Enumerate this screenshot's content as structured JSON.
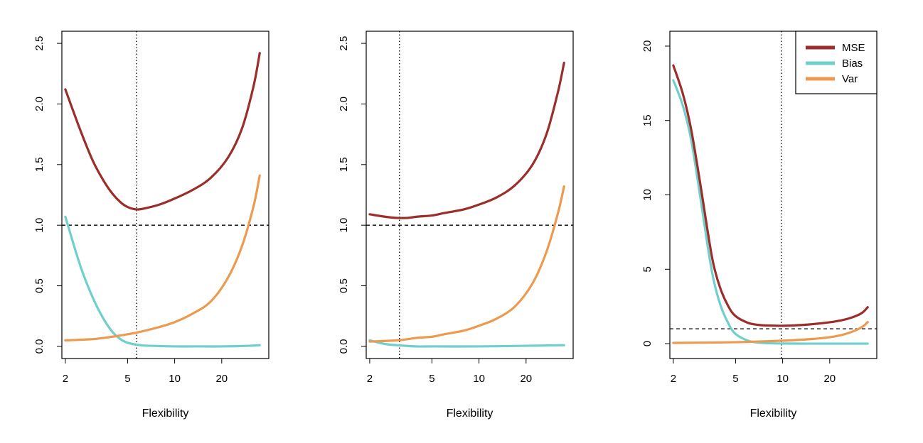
{
  "colors": {
    "MSE": "#9b2d2a",
    "Bias": "#6fcfcb",
    "Var": "#eb9a4f",
    "frame": "#000000",
    "background": "#ffffff"
  },
  "chart_data": [
    {
      "type": "line",
      "xlabel": "Flexibility",
      "ylabel": "",
      "x_scale": "log",
      "xlim": [
        1.9,
        40
      ],
      "ylim": [
        -0.1,
        2.6
      ],
      "xticks": [
        2,
        5,
        10,
        20
      ],
      "xtick_labels": [
        "2",
        "5",
        "10",
        "20"
      ],
      "yticks": [
        0.0,
        0.5,
        1.0,
        1.5,
        2.0,
        2.5
      ],
      "ytick_labels": [
        "0.0",
        "0.5",
        "1.0",
        "1.5",
        "2.0",
        "2.5"
      ],
      "hline": 1.0,
      "vline": 5.7,
      "legend": false,
      "series": [
        {
          "name": "MSE",
          "x": [
            2,
            2.5,
            3,
            3.5,
            4,
            4.5,
            5,
            5.7,
            6.5,
            8,
            10,
            13,
            17,
            22,
            27,
            32,
            35
          ],
          "y": [
            2.12,
            1.78,
            1.53,
            1.37,
            1.26,
            1.19,
            1.15,
            1.13,
            1.14,
            1.17,
            1.22,
            1.29,
            1.39,
            1.56,
            1.8,
            2.15,
            2.42
          ]
        },
        {
          "name": "Bias",
          "x": [
            2,
            2.5,
            3,
            3.5,
            4,
            4.5,
            5,
            6,
            7,
            10,
            15,
            20,
            30,
            35
          ],
          "y": [
            1.07,
            0.66,
            0.4,
            0.23,
            0.12,
            0.06,
            0.03,
            0.01,
            0.005,
            0.0,
            0.0,
            0.0,
            0.005,
            0.01
          ]
        },
        {
          "name": "Var",
          "x": [
            2,
            3,
            4,
            5,
            6,
            8,
            10,
            13,
            17,
            22,
            27,
            32,
            35
          ],
          "y": [
            0.05,
            0.06,
            0.08,
            0.1,
            0.12,
            0.16,
            0.2,
            0.27,
            0.37,
            0.57,
            0.83,
            1.16,
            1.41
          ]
        }
      ]
    },
    {
      "type": "line",
      "xlabel": "Flexibility",
      "ylabel": "",
      "x_scale": "log",
      "xlim": [
        1.9,
        40
      ],
      "ylim": [
        -0.1,
        2.6
      ],
      "xticks": [
        2,
        5,
        10,
        20
      ],
      "xtick_labels": [
        "2",
        "5",
        "10",
        "20"
      ],
      "yticks": [
        0.0,
        0.5,
        1.0,
        1.5,
        2.0,
        2.5
      ],
      "ytick_labels": [
        "0.0",
        "0.5",
        "1.0",
        "1.5",
        "2.0",
        "2.5"
      ],
      "hline": 1.0,
      "vline": 3.1,
      "legend": false,
      "series": [
        {
          "name": "MSE",
          "x": [
            2,
            2.5,
            3,
            3.5,
            4,
            5,
            6,
            8,
            10,
            13,
            17,
            22,
            27,
            32,
            35
          ],
          "y": [
            1.09,
            1.07,
            1.06,
            1.06,
            1.07,
            1.08,
            1.1,
            1.13,
            1.17,
            1.23,
            1.33,
            1.5,
            1.75,
            2.1,
            2.34
          ]
        },
        {
          "name": "Bias",
          "x": [
            2,
            2.5,
            3,
            4,
            5,
            10,
            20,
            35
          ],
          "y": [
            0.05,
            0.02,
            0.01,
            0.0,
            0.0,
            0.0,
            0.005,
            0.01
          ]
        },
        {
          "name": "Var",
          "x": [
            2,
            3,
            4,
            5,
            6,
            8,
            10,
            13,
            17,
            22,
            27,
            32,
            35
          ],
          "y": [
            0.04,
            0.05,
            0.07,
            0.08,
            0.1,
            0.13,
            0.17,
            0.23,
            0.33,
            0.52,
            0.78,
            1.1,
            1.32
          ]
        }
      ]
    },
    {
      "type": "line",
      "xlabel": "Flexibility",
      "ylabel": "",
      "x_scale": "log",
      "xlim": [
        1.9,
        40
      ],
      "ylim": [
        -1,
        21
      ],
      "xticks": [
        2,
        5,
        10,
        20
      ],
      "xtick_labels": [
        "2",
        "5",
        "10",
        "20"
      ],
      "yticks": [
        0,
        5,
        10,
        15,
        20
      ],
      "ytick_labels": [
        "0",
        "5",
        "10",
        "15",
        "20"
      ],
      "hline": 1.0,
      "vline": 9.8,
      "legend": true,
      "legend_position": "top-right",
      "legend_entries": [
        "MSE",
        "Bias",
        "Var"
      ],
      "series": [
        {
          "name": "MSE",
          "x": [
            2,
            2.3,
            2.6,
            3,
            3.3,
            3.6,
            4,
            4.5,
            5,
            6,
            7,
            8,
            10,
            13,
            17,
            22,
            27,
            32,
            35
          ],
          "y": [
            18.7,
            16.8,
            14.4,
            10.5,
            7.7,
            5.4,
            3.7,
            2.5,
            1.85,
            1.4,
            1.26,
            1.22,
            1.2,
            1.25,
            1.35,
            1.5,
            1.72,
            2.05,
            2.45
          ]
        },
        {
          "name": "Bias",
          "x": [
            2,
            2.3,
            2.6,
            3,
            3.3,
            3.6,
            4,
            4.5,
            5,
            6,
            7,
            8,
            10,
            15,
            20,
            35
          ],
          "y": [
            17.7,
            16.0,
            13.7,
            9.6,
            6.7,
            4.4,
            2.6,
            1.35,
            0.65,
            0.2,
            0.07,
            0.03,
            0.01,
            0.0,
            0.0,
            0.0
          ]
        },
        {
          "name": "Var",
          "x": [
            2,
            4,
            6,
            8,
            10,
            13,
            17,
            22,
            27,
            32,
            35
          ],
          "y": [
            0.05,
            0.08,
            0.12,
            0.16,
            0.2,
            0.26,
            0.35,
            0.5,
            0.75,
            1.1,
            1.45
          ]
        }
      ]
    }
  ]
}
